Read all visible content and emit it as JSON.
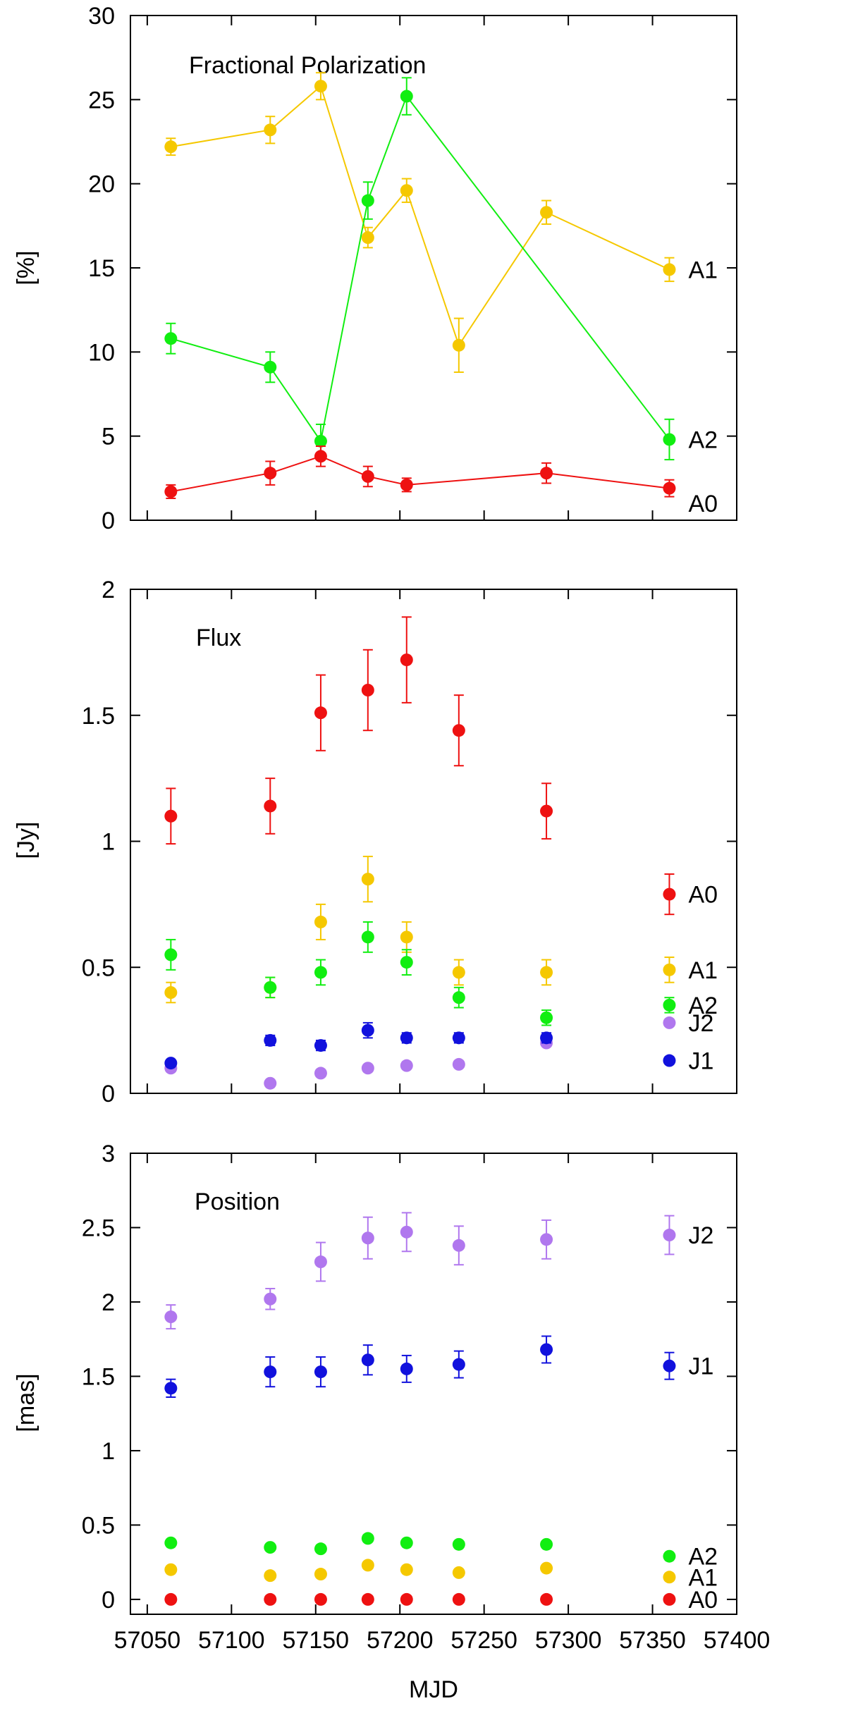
{
  "chart_data": [
    {
      "id": "polarization",
      "type": "line",
      "title": "Fractional Polarization",
      "ylabel": "[%]",
      "xlabel": "",
      "xlim": [
        57040,
        57400
      ],
      "ylim": [
        0,
        30
      ],
      "yticks": [
        0,
        5,
        10,
        15,
        20,
        25,
        30
      ],
      "yticklabels": [
        "0",
        "5",
        "10",
        "15",
        "20",
        "25",
        "30"
      ],
      "connect": true,
      "series": [
        {
          "name": "A1",
          "color": "#f5c800",
          "x": [
            57064,
            57123,
            57153,
            57181,
            57204,
            57235,
            57287,
            57360
          ],
          "y": [
            22.2,
            23.2,
            25.8,
            16.8,
            19.6,
            10.4,
            18.3,
            14.9
          ],
          "err": [
            0.5,
            0.8,
            0.8,
            0.6,
            0.7,
            1.6,
            0.7,
            0.7
          ]
        },
        {
          "name": "A2",
          "color": "#11ee11",
          "x": [
            57064,
            57123,
            57153,
            57181,
            57204,
            57360
          ],
          "y": [
            10.8,
            9.1,
            4.7,
            19.0,
            25.2,
            4.8
          ],
          "err": [
            0.9,
            0.9,
            1.0,
            1.1,
            1.1,
            1.2
          ]
        },
        {
          "name": "A0",
          "color": "#ee1111",
          "x": [
            57064,
            57123,
            57153,
            57181,
            57204,
            57287,
            57360
          ],
          "y": [
            1.7,
            2.8,
            3.8,
            2.6,
            2.1,
            2.8,
            1.9
          ],
          "err": [
            0.4,
            0.7,
            0.6,
            0.6,
            0.4,
            0.6,
            0.5
          ]
        }
      ]
    },
    {
      "id": "flux",
      "type": "scatter",
      "title": "Flux",
      "ylabel": "[Jy]",
      "xlabel": "",
      "xlim": [
        57040,
        57400
      ],
      "ylim": [
        0,
        2
      ],
      "yticks": [
        0,
        0.5,
        1,
        1.5,
        2
      ],
      "yticklabels": [
        "0",
        "0.5",
        "1",
        "1.5",
        "2"
      ],
      "connect": false,
      "series": [
        {
          "name": "A0",
          "color": "#ee1111",
          "x": [
            57064,
            57123,
            57153,
            57181,
            57204,
            57235,
            57287
          ],
          "y": [
            1.1,
            1.14,
            1.51,
            1.6,
            1.72,
            1.44,
            1.12
          ],
          "err": [
            0.11,
            0.11,
            0.15,
            0.16,
            0.17,
            0.14,
            0.11
          ]
        },
        {
          "name": "A1",
          "color": "#f5c800",
          "x": [
            57064,
            57123,
            57153,
            57181,
            57204,
            57235,
            57287
          ],
          "y": [
            0.4,
            0.42,
            0.68,
            0.85,
            0.62,
            0.48,
            0.48
          ],
          "err": [
            0.04,
            0.04,
            0.07,
            0.09,
            0.06,
            0.05,
            0.05
          ]
        },
        {
          "name": "A2",
          "color": "#11ee11",
          "x": [
            57064,
            57123,
            57153,
            57181,
            57204,
            57235,
            57287
          ],
          "y": [
            0.55,
            0.42,
            0.48,
            0.62,
            0.52,
            0.38,
            0.3
          ],
          "err": [
            0.06,
            0.04,
            0.05,
            0.06,
            0.05,
            0.04,
            0.03
          ]
        },
        {
          "name": "J2",
          "color": "#b077ee",
          "x": [
            57064,
            57123,
            57153,
            57181,
            57204,
            57235,
            57287
          ],
          "y": [
            0.1,
            0.04,
            0.08,
            0.1,
            0.11,
            0.115,
            0.2
          ],
          "err": [
            0,
            0,
            0,
            0,
            0,
            0,
            0
          ]
        },
        {
          "name": "J1",
          "color": "#1111dd",
          "x": [
            57064,
            57123,
            57153,
            57181,
            57204,
            57235,
            57287
          ],
          "y": [
            0.12,
            0.21,
            0.19,
            0.25,
            0.22,
            0.22,
            0.22
          ],
          "err": [
            0,
            0.02,
            0.02,
            0.03,
            0.02,
            0.02,
            0.02
          ]
        }
      ],
      "legend_extra": [
        {
          "name": "A0",
          "color": "#ee1111",
          "value": 0.79,
          "err": 0.08
        },
        {
          "name": "A1",
          "color": "#f5c800",
          "value": 0.49,
          "err": 0.05
        },
        {
          "name": "A2",
          "color": "#11ee11",
          "value": 0.35,
          "err": 0.03
        },
        {
          "name": "J2",
          "color": "#b077ee",
          "value": 0.28,
          "err": 0.0
        },
        {
          "name": "J1",
          "color": "#1111dd",
          "value": 0.13,
          "err": 0.0
        }
      ]
    },
    {
      "id": "position",
      "type": "scatter",
      "title": "Position",
      "ylabel": "[mas]",
      "xlabel": "MJD",
      "xlim": [
        57040,
        57400
      ],
      "ylim": [
        -0.1,
        3
      ],
      "yticks": [
        0,
        0.5,
        1,
        1.5,
        2,
        2.5,
        3
      ],
      "yticklabels": [
        "0",
        "0.5",
        "1",
        "1.5",
        "2",
        "2.5",
        "3"
      ],
      "xticks": [
        57050,
        57100,
        57150,
        57200,
        57250,
        57300,
        57350,
        57400
      ],
      "xticklabels": [
        "57050",
        "57100",
        "57150",
        "57200",
        "57250",
        "57300",
        "57350",
        "57400"
      ],
      "connect": false,
      "series": [
        {
          "name": "J2",
          "color": "#b077ee",
          "x": [
            57064,
            57123,
            57153,
            57181,
            57204,
            57235,
            57287,
            57360
          ],
          "y": [
            1.9,
            2.02,
            2.27,
            2.43,
            2.47,
            2.38,
            2.42,
            2.45
          ],
          "err": [
            0.08,
            0.07,
            0.13,
            0.14,
            0.13,
            0.13,
            0.13,
            0.13
          ]
        },
        {
          "name": "J1",
          "color": "#1111dd",
          "x": [
            57064,
            57123,
            57153,
            57181,
            57204,
            57235,
            57287,
            57360
          ],
          "y": [
            1.42,
            1.53,
            1.53,
            1.61,
            1.55,
            1.58,
            1.68,
            1.57
          ],
          "err": [
            0.06,
            0.1,
            0.1,
            0.1,
            0.09,
            0.09,
            0.09,
            0.09
          ]
        },
        {
          "name": "A2",
          "color": "#11ee11",
          "x": [
            57064,
            57123,
            57153,
            57181,
            57204,
            57235,
            57287,
            57360
          ],
          "y": [
            0.38,
            0.35,
            0.34,
            0.41,
            0.38,
            0.37,
            0.37,
            0.29
          ],
          "err": [
            0,
            0,
            0,
            0,
            0,
            0,
            0,
            0
          ]
        },
        {
          "name": "A1",
          "color": "#f5c800",
          "x": [
            57064,
            57123,
            57153,
            57181,
            57204,
            57235,
            57287,
            57360
          ],
          "y": [
            0.2,
            0.16,
            0.17,
            0.23,
            0.2,
            0.18,
            0.21,
            0.15
          ],
          "err": [
            0,
            0,
            0,
            0,
            0,
            0,
            0,
            0
          ]
        },
        {
          "name": "A0",
          "color": "#ee1111",
          "x": [
            57064,
            57123,
            57153,
            57181,
            57204,
            57235,
            57287,
            57360
          ],
          "y": [
            0,
            0,
            0,
            0,
            0,
            0,
            0,
            0
          ],
          "err": [
            0,
            0,
            0,
            0,
            0,
            0,
            0,
            0
          ]
        }
      ],
      "series_labels": [
        {
          "name": "J2",
          "y": 2.45
        },
        {
          "name": "J1",
          "y": 1.57
        },
        {
          "name": "A2",
          "y": 0.29
        },
        {
          "name": "A1",
          "y": 0.15
        },
        {
          "name": "A0",
          "y": 0.0
        }
      ]
    }
  ],
  "labels": {
    "pol_series": [
      {
        "name": "A1",
        "y": 14.9
      },
      {
        "name": "A2",
        "y": 4.8
      },
      {
        "name": "A0",
        "y": 1.0
      }
    ]
  }
}
